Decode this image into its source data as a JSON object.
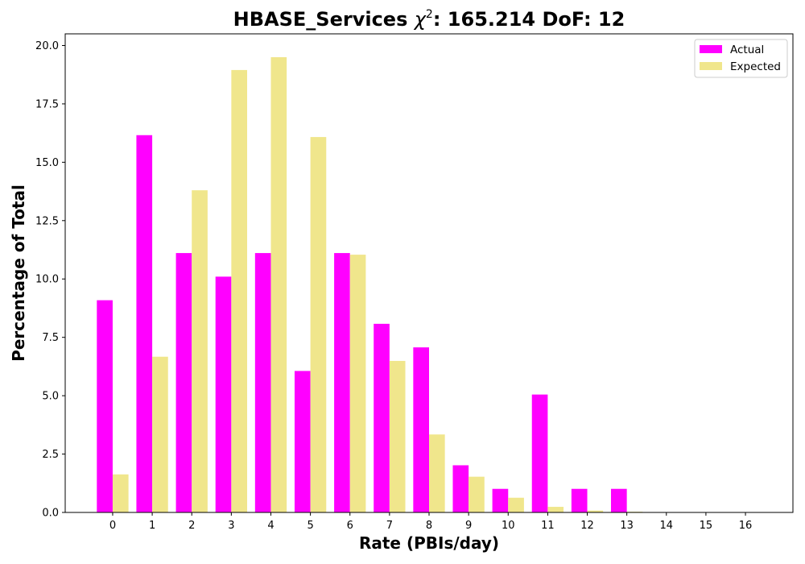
{
  "chart_data": {
    "type": "bar",
    "title_prefix": "HBASE_Services ",
    "title_chi": "χ",
    "title_exp": "2",
    "title_suffix": ": 165.214 DoF: 12",
    "xlabel": "Rate (PBIs/day)",
    "ylabel": "Percentage of Total",
    "categories": [
      "0",
      "1",
      "2",
      "3",
      "4",
      "5",
      "6",
      "7",
      "8",
      "9",
      "10",
      "11",
      "12",
      "13",
      "14",
      "15",
      "16"
    ],
    "series": [
      {
        "name": "Actual",
        "color": "#ff00ff",
        "values": [
          9.09,
          16.16,
          11.11,
          10.1,
          11.11,
          6.06,
          11.11,
          8.08,
          7.07,
          2.02,
          1.01,
          5.05,
          1.01,
          1.01,
          0,
          0,
          0
        ]
      },
      {
        "name": "Expected",
        "color": "#f0e68c",
        "values": [
          1.63,
          6.67,
          13.8,
          18.95,
          19.5,
          16.08,
          11.04,
          6.49,
          3.34,
          1.53,
          0.63,
          0.24,
          0.08,
          0.03,
          0,
          0,
          0
        ]
      }
    ],
    "ylim": [
      0,
      20.5
    ],
    "yticks": [
      0.0,
      2.5,
      5.0,
      7.5,
      10.0,
      12.5,
      15.0,
      17.5,
      20.0
    ],
    "ytick_labels": [
      "0.0",
      "2.5",
      "5.0",
      "7.5",
      "10.0",
      "12.5",
      "15.0",
      "17.5",
      "20.0"
    ],
    "grid": false,
    "legend_position": "top-right"
  }
}
